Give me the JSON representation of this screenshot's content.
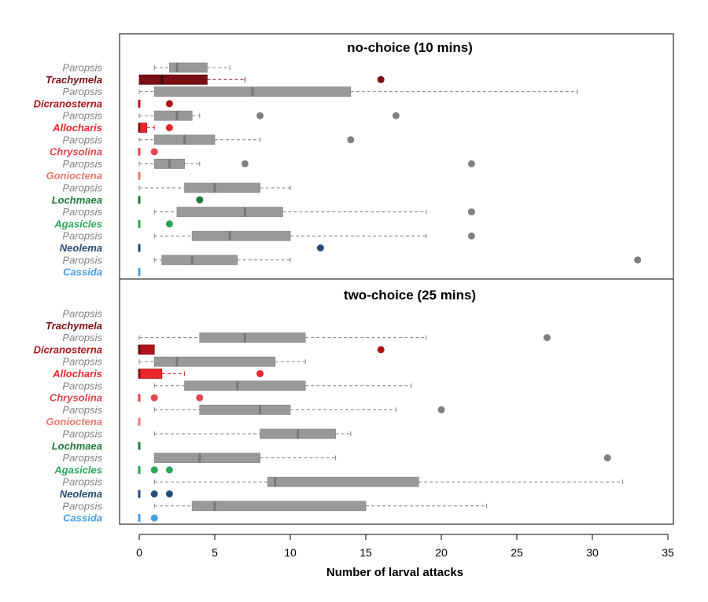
{
  "chart_data": {
    "type": "boxplot",
    "xlabel": "Number of larval attacks",
    "xlim": [
      0,
      35
    ],
    "xticks": [
      0,
      5,
      10,
      15,
      20,
      25,
      30,
      35
    ],
    "colors": {
      "Paropsis": "#808080",
      "Trachymela": "#7a0f14",
      "Dicranosterna": "#b0141b",
      "Allocharis": "#e8262c",
      "Chrysolina": "#e0474f",
      "Gonioctena": "#ec7a70",
      "Lochmaea": "#1f7a3c",
      "Agasicles": "#2aa65a",
      "Neolema": "#284d75",
      "Cassida": "#4a9fe0"
    },
    "categories": [
      "Paropsis",
      "Trachymela",
      "Paropsis",
      "Dicranosterna",
      "Paropsis",
      "Allocharis",
      "Paropsis",
      "Chrysolina",
      "Paropsis",
      "Gonioctena",
      "Paropsis",
      "Lochmaea",
      "Paropsis",
      "Agasicles",
      "Paropsis",
      "Neolema",
      "Paropsis",
      "Cassida"
    ],
    "panels": [
      {
        "title": "no-choice (10 mins)",
        "rows": [
          {
            "label": "Paropsis",
            "min": 1,
            "q1": 2,
            "median": 2.5,
            "q3": 4.5,
            "max": 6,
            "outliers": []
          },
          {
            "label": "Trachymela",
            "min": 0,
            "q1": 0,
            "median": 1.5,
            "q3": 4.5,
            "max": 7,
            "outliers": [
              16
            ]
          },
          {
            "label": "Paropsis",
            "min": 0,
            "q1": 1,
            "median": 7.5,
            "q3": 14,
            "max": 29,
            "outliers": []
          },
          {
            "label": "Dicranosterna",
            "min": 0,
            "q1": 0,
            "median": 0,
            "q3": 0,
            "max": 0,
            "outliers": [
              2
            ]
          },
          {
            "label": "Paropsis",
            "min": 0,
            "q1": 1,
            "median": 2.5,
            "q3": 3.5,
            "max": 4,
            "outliers": [
              8,
              17
            ]
          },
          {
            "label": "Allocharis",
            "min": 0,
            "q1": 0,
            "median": 0,
            "q3": 0.5,
            "max": 1,
            "outliers": [
              2
            ]
          },
          {
            "label": "Paropsis",
            "min": 0,
            "q1": 1,
            "median": 3,
            "q3": 5,
            "max": 8,
            "outliers": [
              14
            ]
          },
          {
            "label": "Chrysolina",
            "min": 0,
            "q1": 0,
            "median": 0,
            "q3": 0,
            "max": 0,
            "outliers": [
              1
            ]
          },
          {
            "label": "Paropsis",
            "min": 0,
            "q1": 1,
            "median": 2,
            "q3": 3,
            "max": 4,
            "outliers": [
              7,
              22
            ]
          },
          {
            "label": "Gonioctena",
            "min": 0,
            "q1": 0,
            "median": 0,
            "q3": 0,
            "max": 0,
            "outliers": []
          },
          {
            "label": "Paropsis",
            "min": 0,
            "q1": 3,
            "median": 5,
            "q3": 8,
            "max": 10,
            "outliers": []
          },
          {
            "label": "Lochmaea",
            "min": 0,
            "q1": 0,
            "median": 0,
            "q3": 0,
            "max": 0,
            "outliers": [
              4
            ]
          },
          {
            "label": "Paropsis",
            "min": 1,
            "q1": 2.5,
            "median": 7,
            "q3": 9.5,
            "max": 19,
            "outliers": [
              22
            ]
          },
          {
            "label": "Agasicles",
            "min": 0,
            "q1": 0,
            "median": 0,
            "q3": 0,
            "max": 0,
            "outliers": [
              2
            ]
          },
          {
            "label": "Paropsis",
            "min": 1,
            "q1": 3.5,
            "median": 6,
            "q3": 10,
            "max": 19,
            "outliers": [
              22
            ]
          },
          {
            "label": "Neolema",
            "min": 0,
            "q1": 0,
            "median": 0,
            "q3": 0,
            "max": 0,
            "outliers": [
              12
            ]
          },
          {
            "label": "Paropsis",
            "min": 1,
            "q1": 1.5,
            "median": 3.5,
            "q3": 6.5,
            "max": 10,
            "outliers": [
              33
            ]
          },
          {
            "label": "Cassida",
            "min": 0,
            "q1": 0,
            "median": 0,
            "q3": 0,
            "max": 0,
            "outliers": []
          }
        ]
      },
      {
        "title": "two-choice (25 mins)",
        "rows": [
          {
            "label": "Paropsis",
            "min": 0,
            "q1": 0,
            "median": 0,
            "q3": 0,
            "max": 0,
            "outliers": [],
            "empty": true
          },
          {
            "label": "Trachymela",
            "min": 0,
            "q1": 0,
            "median": 0,
            "q3": 0,
            "max": 0,
            "outliers": [],
            "empty": true
          },
          {
            "label": "Paropsis",
            "min": 0,
            "q1": 4,
            "median": 7,
            "q3": 11,
            "max": 19,
            "outliers": [
              27
            ]
          },
          {
            "label": "Dicranosterna",
            "min": 0,
            "q1": 0,
            "median": 0,
            "q3": 1,
            "max": 1,
            "outliers": [
              16
            ]
          },
          {
            "label": "Paropsis",
            "min": 0,
            "q1": 1,
            "median": 2.5,
            "q3": 9,
            "max": 11,
            "outliers": []
          },
          {
            "label": "Allocharis",
            "min": 0,
            "q1": 0,
            "median": 0,
            "q3": 1.5,
            "max": 3,
            "outliers": [
              8
            ]
          },
          {
            "label": "Paropsis",
            "min": 1,
            "q1": 3,
            "median": 6.5,
            "q3": 11,
            "max": 18,
            "outliers": []
          },
          {
            "label": "Chrysolina",
            "min": 0,
            "q1": 0,
            "median": 0,
            "q3": 0,
            "max": 0,
            "outliers": [
              1,
              4
            ]
          },
          {
            "label": "Paropsis",
            "min": 1,
            "q1": 4,
            "median": 8,
            "q3": 10,
            "max": 17,
            "outliers": [
              20
            ]
          },
          {
            "label": "Gonioctena",
            "min": 0,
            "q1": 0,
            "median": 0,
            "q3": 0,
            "max": 0,
            "outliers": []
          },
          {
            "label": "Paropsis",
            "min": 1,
            "q1": 8,
            "median": 10.5,
            "q3": 13,
            "max": 14,
            "outliers": []
          },
          {
            "label": "Lochmaea",
            "min": 0,
            "q1": 0,
            "median": 0,
            "q3": 0,
            "max": 0,
            "outliers": []
          },
          {
            "label": "Paropsis",
            "min": 1,
            "q1": 1,
            "median": 4,
            "q3": 8,
            "max": 13,
            "outliers": [
              31
            ]
          },
          {
            "label": "Agasicles",
            "min": 0,
            "q1": 0,
            "median": 0,
            "q3": 0,
            "max": 0,
            "outliers": [
              1,
              2
            ]
          },
          {
            "label": "Paropsis",
            "min": 1,
            "q1": 8.5,
            "median": 9,
            "q3": 18.5,
            "max": 32,
            "outliers": []
          },
          {
            "label": "Neolema",
            "min": 0,
            "q1": 0,
            "median": 0,
            "q3": 0,
            "max": 0,
            "outliers": [
              1,
              2
            ]
          },
          {
            "label": "Paropsis",
            "min": 1,
            "q1": 3.5,
            "median": 5,
            "q3": 15,
            "max": 23,
            "outliers": []
          },
          {
            "label": "Cassida",
            "min": 0,
            "q1": 0,
            "median": 0,
            "q3": 0,
            "max": 0,
            "outliers": [
              1
            ]
          }
        ]
      }
    ]
  }
}
